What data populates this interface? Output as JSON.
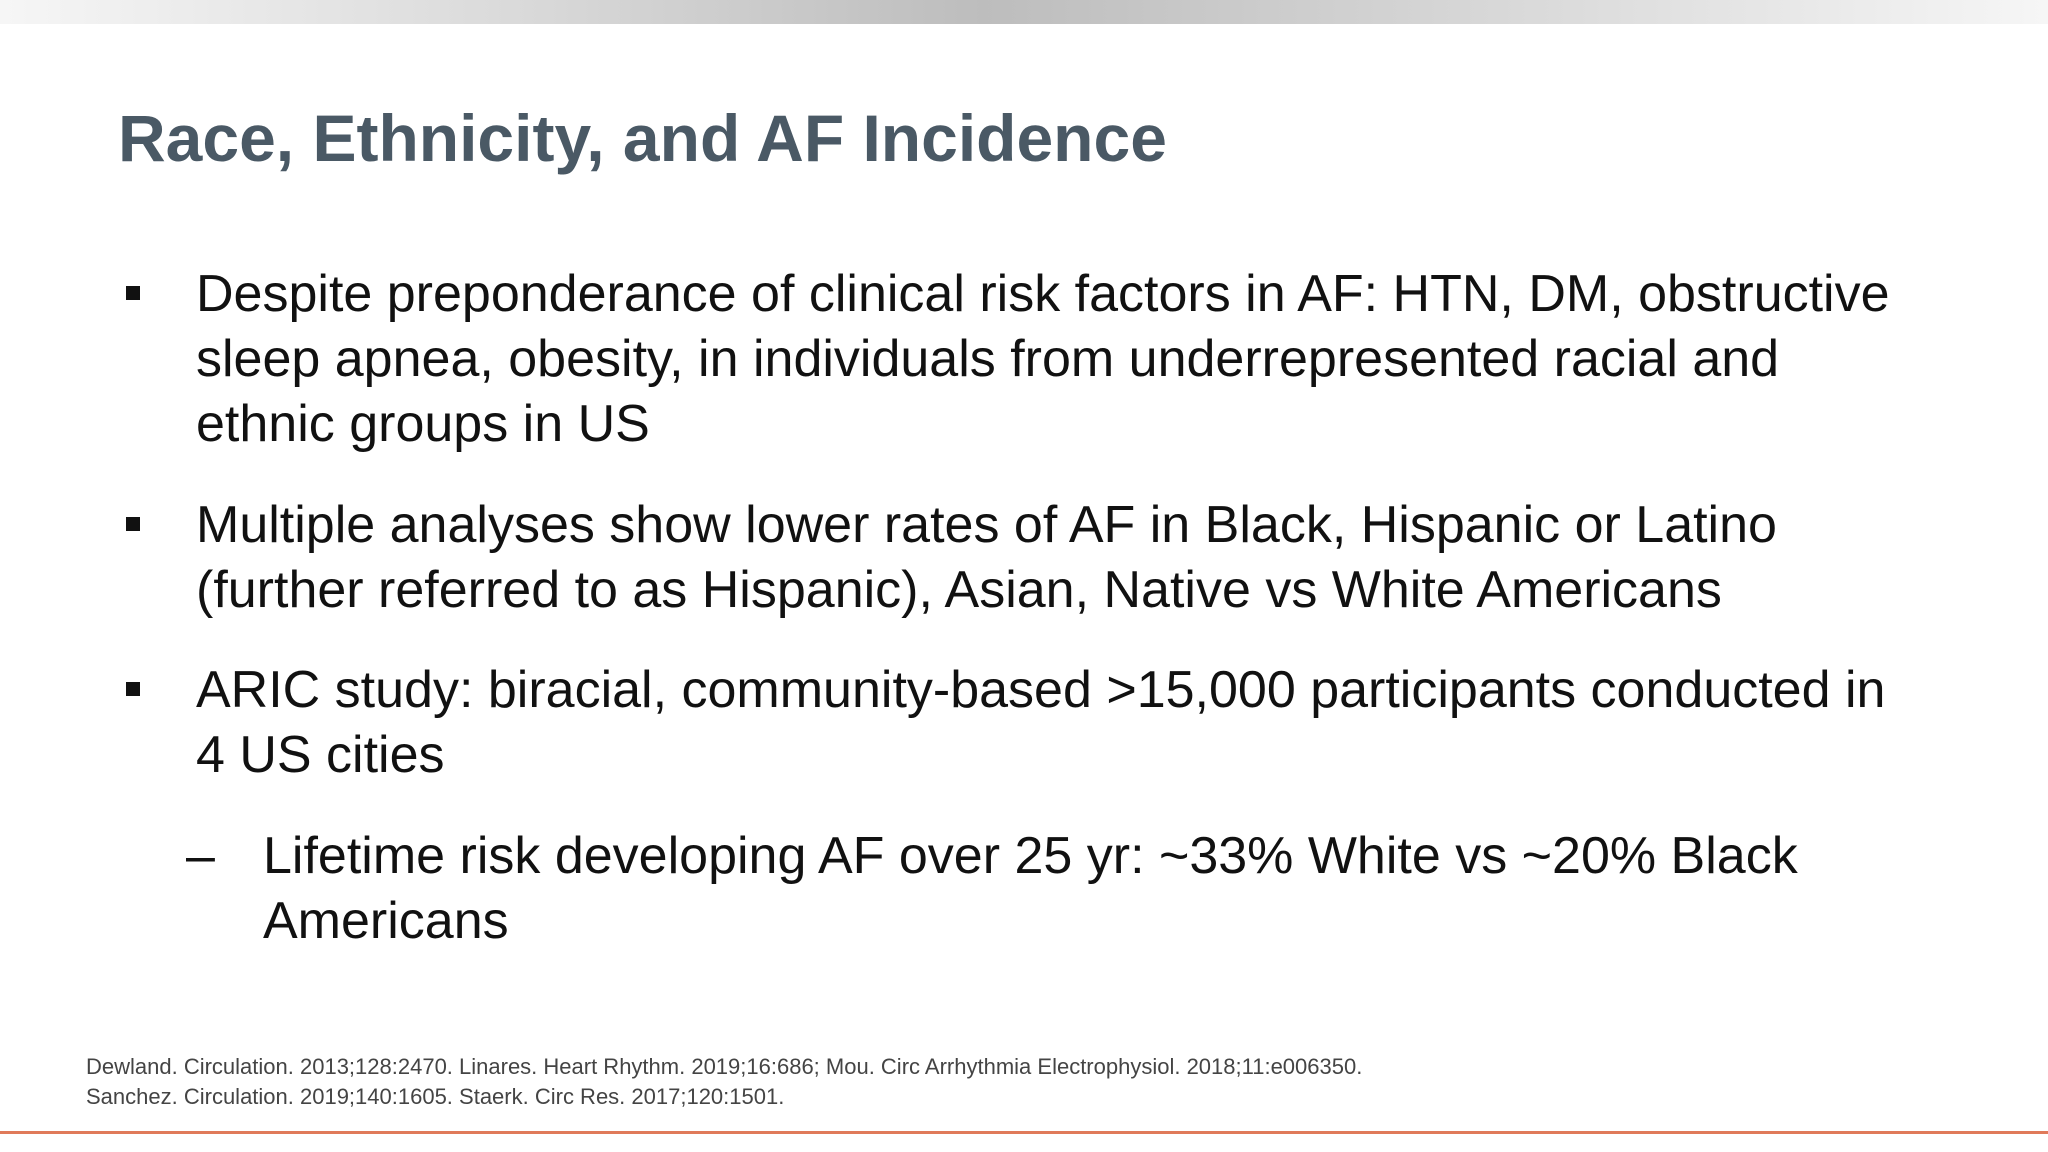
{
  "slide": {
    "title": "Race, Ethnicity, and AF Incidence",
    "bullets": [
      {
        "text": "Despite preponderance of clinical risk factors in AF: HTN, DM, obstructive sleep apnea, obesity, in individuals from underrepresented racial and ethnic groups in US"
      },
      {
        "text": "Multiple analyses show lower rates of AF in Black, Hispanic or Latino (further referred to as Hispanic), Asian, Native vs White Americans"
      },
      {
        "text": "ARIC study: biracial, community-based >15,000 participants conducted in 4 US cities"
      }
    ],
    "sub_bullet": {
      "dash": "–",
      "text": "Lifetime risk developing AF over 25 yr: ~33% White vs ~20% Black Americans"
    },
    "references": "Dewland. Circulation. 2013;128:2470. Linares. Heart Rhythm. 2019;16:686; Mou. Circ Arrhythmia Electrophysiol. 2018;11:e006350. Sanchez. Circulation. 2019;140:1605. Staerk. Circ Res. 2017;120:1501."
  },
  "colors": {
    "title": "#4a5965",
    "body_text": "#111111",
    "references": "#444444",
    "bottom_rule": "#e07a5a"
  }
}
